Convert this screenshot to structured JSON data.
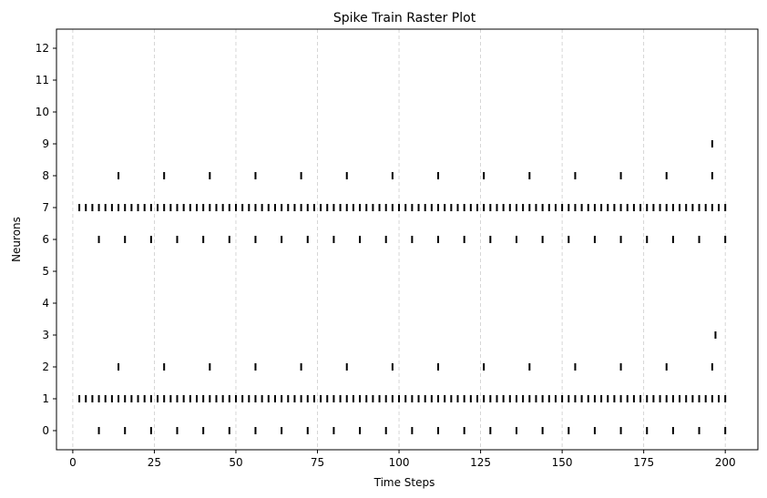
{
  "chart_data": {
    "type": "scatter",
    "subtype": "raster",
    "title": "Spike Train Raster Plot",
    "xlabel": "Time Steps",
    "ylabel": "Neurons",
    "xlim": [
      -5,
      210
    ],
    "ylim": [
      -0.6,
      12.6
    ],
    "xticks": [
      0,
      25,
      50,
      75,
      100,
      125,
      150,
      175,
      200
    ],
    "yticks": [
      0,
      1,
      2,
      3,
      4,
      5,
      6,
      7,
      8,
      9,
      10,
      11,
      12
    ],
    "grid": "vertical dashed",
    "marker_color": "#000000",
    "grid_color": "#cccccc",
    "series": [
      {
        "neuron": 0,
        "times": [
          8,
          16,
          24,
          32,
          40,
          48,
          56,
          64,
          72,
          80,
          88,
          96,
          104,
          112,
          120,
          128,
          136,
          144,
          152,
          160,
          168,
          176,
          184,
          192,
          200
        ]
      },
      {
        "neuron": 1,
        "times": [
          2,
          4,
          6,
          8,
          10,
          12,
          14,
          16,
          18,
          20,
          22,
          24,
          26,
          28,
          30,
          32,
          34,
          36,
          38,
          40,
          42,
          44,
          46,
          48,
          50,
          52,
          54,
          56,
          58,
          60,
          62,
          64,
          66,
          68,
          70,
          72,
          74,
          76,
          78,
          80,
          82,
          84,
          86,
          88,
          90,
          92,
          94,
          96,
          98,
          100,
          102,
          104,
          106,
          108,
          110,
          112,
          114,
          116,
          118,
          120,
          122,
          124,
          126,
          128,
          130,
          132,
          134,
          136,
          138,
          140,
          142,
          144,
          146,
          148,
          150,
          152,
          154,
          156,
          158,
          160,
          162,
          164,
          166,
          168,
          170,
          172,
          174,
          176,
          178,
          180,
          182,
          184,
          186,
          188,
          190,
          192,
          194,
          196,
          198,
          200
        ]
      },
      {
        "neuron": 2,
        "times": [
          14,
          28,
          42,
          56,
          70,
          84,
          98,
          112,
          126,
          140,
          154,
          168,
          182,
          196
        ]
      },
      {
        "neuron": 3,
        "times": [
          197
        ]
      },
      {
        "neuron": 6,
        "times": [
          8,
          16,
          24,
          32,
          40,
          48,
          56,
          64,
          72,
          80,
          88,
          96,
          104,
          112,
          120,
          128,
          136,
          144,
          152,
          160,
          168,
          176,
          184,
          192,
          200
        ]
      },
      {
        "neuron": 7,
        "times": [
          2,
          4,
          6,
          8,
          10,
          12,
          14,
          16,
          18,
          20,
          22,
          24,
          26,
          28,
          30,
          32,
          34,
          36,
          38,
          40,
          42,
          44,
          46,
          48,
          50,
          52,
          54,
          56,
          58,
          60,
          62,
          64,
          66,
          68,
          70,
          72,
          74,
          76,
          78,
          80,
          82,
          84,
          86,
          88,
          90,
          92,
          94,
          96,
          98,
          100,
          102,
          104,
          106,
          108,
          110,
          112,
          114,
          116,
          118,
          120,
          122,
          124,
          126,
          128,
          130,
          132,
          134,
          136,
          138,
          140,
          142,
          144,
          146,
          148,
          150,
          152,
          154,
          156,
          158,
          160,
          162,
          164,
          166,
          168,
          170,
          172,
          174,
          176,
          178,
          180,
          182,
          184,
          186,
          188,
          190,
          192,
          194,
          196,
          198,
          200
        ]
      },
      {
        "neuron": 8,
        "times": [
          14,
          28,
          42,
          56,
          70,
          84,
          98,
          112,
          126,
          140,
          154,
          168,
          182,
          196
        ]
      },
      {
        "neuron": 9,
        "times": [
          196
        ]
      }
    ]
  }
}
